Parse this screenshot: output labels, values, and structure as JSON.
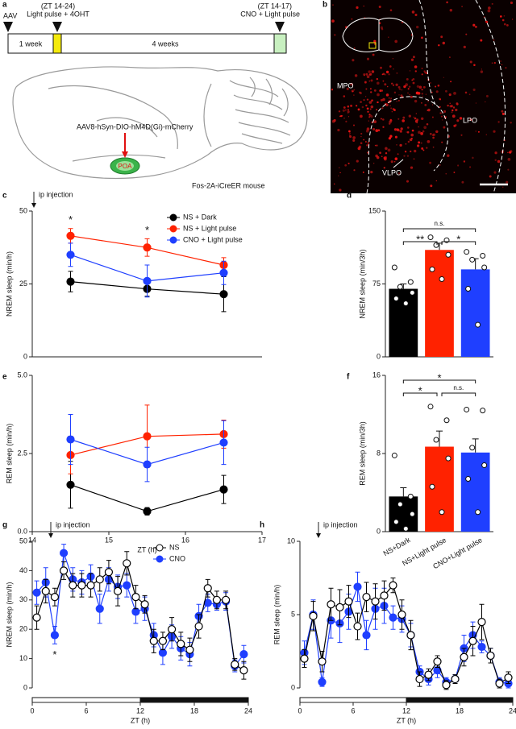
{
  "panel_a": {
    "label": "a",
    "aav": "AAV",
    "light_time": "(ZT 14-24)",
    "light_label": "Light pulse + 4OHT",
    "cno_time": "(ZT 14-17)",
    "cno_label": "CNO + Light pulse",
    "week1": "1 week",
    "week4": "4 weeks",
    "virus": "AAV8-hSyn-DIO-hM4D(Gi)-mCherry",
    "region": "POA",
    "mouse": "Fos-2A-iCreER mouse"
  },
  "panel_b": {
    "label": "b",
    "regions": [
      "MPO",
      "LPO",
      "VLPO"
    ]
  },
  "chart_data": [
    {
      "panel": "c",
      "type": "line",
      "ylabel": "NREM sleep (min/h)",
      "injection": "ip injection",
      "x": [
        14.5,
        15.5,
        16.5
      ],
      "xlim": [
        14,
        17
      ],
      "ylim": [
        0,
        50
      ],
      "yticks": [
        0,
        25,
        50
      ],
      "annotations": [
        "*",
        "*"
      ],
      "legend": "upper right",
      "series": [
        {
          "name": "NS + Dark",
          "color": "#000000",
          "marker": "filled",
          "values": [
            25.8,
            23.3,
            21.5
          ],
          "errors": [
            3.5,
            2.5,
            6
          ]
        },
        {
          "name": "NS + Light pulse",
          "color": "#ff2200",
          "marker": "filled",
          "values": [
            41.5,
            37.5,
            31.5
          ],
          "errors": [
            2.5,
            3,
            2.5
          ]
        },
        {
          "name": "CNO + Light pulse",
          "color": "#1f3fff",
          "marker": "filled",
          "values": [
            35,
            26,
            28.8
          ],
          "errors": [
            4,
            5.5,
            4
          ]
        }
      ]
    },
    {
      "panel": "d",
      "type": "bar",
      "ylabel": "NREM sleep (min/3h)",
      "categories": [
        null,
        null,
        null
      ],
      "values": [
        70,
        110,
        90
      ],
      "errors": [
        5,
        7,
        11
      ],
      "colors": [
        "#000000",
        "#ff2200",
        "#1f3fff"
      ],
      "points": [
        [
          92,
          77,
          72,
          66,
          60,
          55
        ],
        [
          123,
          120,
          115,
          105,
          90,
          80
        ],
        [
          108,
          104,
          100,
          92,
          70,
          33
        ]
      ],
      "ylim": [
        0,
        150
      ],
      "yticks": [
        0,
        75,
        150
      ],
      "annotations": [
        "n.s.",
        "**",
        "*"
      ]
    },
    {
      "panel": "e",
      "type": "line",
      "ylabel": "REM sleep (min/h)",
      "xlabel": "ZT (h)",
      "x": [
        14.5,
        15.5,
        16.5
      ],
      "xlim": [
        14,
        17
      ],
      "xticks": [
        14,
        15,
        16,
        17
      ],
      "ylim": [
        0,
        5
      ],
      "yticks": [
        {
          "value": 0,
          "label": "0.0"
        },
        2.5,
        {
          "value": 5,
          "label": "5.0"
        }
      ],
      "series": [
        {
          "color": "#000000",
          "marker": "filled",
          "values": [
            1.5,
            0.65,
            1.35
          ],
          "errors": [
            0.75,
            0.12,
            0.45
          ]
        },
        {
          "color": "#ff2200",
          "marker": "filled",
          "values": [
            2.45,
            3.05,
            3.12
          ],
          "errors": [
            0.6,
            1.0,
            0.45
          ]
        },
        {
          "color": "#1f3fff",
          "marker": "filled",
          "values": [
            2.95,
            2.15,
            2.85
          ],
          "errors": [
            0.8,
            0.55,
            0.7
          ]
        }
      ]
    },
    {
      "panel": "f",
      "type": "bar",
      "ylabel": "REM sleep (min/3h)",
      "categories": [
        "NS+Dark",
        "NS+Light pulse",
        "CNO+Light pulse"
      ],
      "values": [
        3.6,
        8.7,
        8.1
      ],
      "errors": [
        0.9,
        1.6,
        1.4
      ],
      "colors": [
        "#000000",
        "#ff2200",
        "#1f3fff"
      ],
      "points": [
        [
          7.8,
          3.6,
          2.8,
          1.8,
          1,
          0.3
        ],
        [
          12.8,
          11.4,
          9.4,
          7.5,
          4.6,
          2.0
        ],
        [
          12.5,
          12.4,
          8.6,
          6.8,
          5.4,
          2.0
        ]
      ],
      "ylim": [
        0,
        16
      ],
      "yticks": [
        0,
        8,
        16
      ],
      "annotations": [
        "*",
        "*",
        "n.s."
      ]
    },
    {
      "panel": "g",
      "type": "line",
      "ylabel": "NREM sleep (min/h)",
      "xlabel": "ZT (h)",
      "injection": "ip injection",
      "annotations": [
        "*"
      ],
      "legend": "upper right",
      "x": [
        0.5,
        1.5,
        2.5,
        3.5,
        4.5,
        5.5,
        6.5,
        7.5,
        8.5,
        9.5,
        10.5,
        11.5,
        12.5,
        13.5,
        14.5,
        15.5,
        16.5,
        17.5,
        18.5,
        19.5,
        20.5,
        21.5,
        22.5,
        23.5
      ],
      "xlim": [
        0,
        24
      ],
      "xticks": [
        0,
        6,
        12,
        18,
        24
      ],
      "ylim": [
        0,
        50
      ],
      "yticks": [
        0,
        10,
        20,
        30,
        40,
        50
      ],
      "dark_period": [
        12,
        24
      ],
      "series": [
        {
          "name": "CNO",
          "color": "#1f3fff",
          "marker": "filled",
          "values": [
            32.5,
            36,
            18,
            46,
            37,
            36,
            38,
            27,
            37,
            34.5,
            35,
            26,
            27,
            18,
            12,
            17.5,
            13.5,
            11.5,
            24.5,
            29,
            28.5,
            29.5,
            7.5,
            11.5
          ],
          "errors": [
            4,
            5,
            3,
            3,
            4,
            4,
            4,
            5,
            4,
            4,
            4,
            4,
            4,
            4,
            4,
            4,
            4,
            4,
            4,
            3,
            2,
            3,
            2,
            3
          ]
        },
        {
          "name": "NS",
          "color": "#000000",
          "marker": "open",
          "values": [
            24,
            33,
            31,
            40,
            35,
            35,
            35,
            37,
            39.5,
            33,
            42.5,
            31,
            28.5,
            16,
            16,
            20,
            15,
            13,
            21,
            34,
            30,
            30,
            8,
            6
          ],
          "errors": [
            4,
            4,
            3,
            3,
            4,
            4,
            4,
            4,
            4,
            5,
            4,
            4,
            3,
            4,
            3,
            4,
            4,
            4,
            4,
            3,
            3,
            3,
            2,
            3
          ]
        }
      ]
    },
    {
      "panel": "h",
      "type": "line",
      "ylabel": "REM sleep (min/h)",
      "xlabel": "ZT (h)",
      "injection": "ip injection",
      "x": [
        0.5,
        1.5,
        2.5,
        3.5,
        4.5,
        5.5,
        6.5,
        7.5,
        8.5,
        9.5,
        10.5,
        11.5,
        12.5,
        13.5,
        14.5,
        15.5,
        16.5,
        17.5,
        18.5,
        19.5,
        20.5,
        21.5,
        22.5,
        23.5
      ],
      "xlim": [
        0,
        24
      ],
      "xticks": [
        0,
        6,
        12,
        18,
        24
      ],
      "ylim": [
        0,
        10
      ],
      "yticks": [
        0,
        5,
        10
      ],
      "dark_period": [
        12,
        24
      ],
      "series": [
        {
          "color": "#1f3fff",
          "marker": "filled",
          "values": [
            2.4,
            5.0,
            0.4,
            4.6,
            4.4,
            5.2,
            6.9,
            3.6,
            5.4,
            5.6,
            4.8,
            4.7,
            3.6,
            1.1,
            0.6,
            1.2,
            0.4,
            0.6,
            2.7,
            3.6,
            2.8,
            2.2,
            0.4,
            0.3
          ],
          "errors": [
            0.8,
            1.0,
            0.3,
            1.2,
            1.3,
            1.2,
            1.0,
            1.0,
            1.4,
            1.2,
            0.8,
            0.9,
            0.8,
            0.4,
            0.4,
            0.5,
            0.3,
            0.3,
            0.9,
            0.9,
            0.4,
            0.5,
            0.3,
            0.3
          ]
        },
        {
          "color": "#000000",
          "marker": "open",
          "values": [
            2.0,
            4.9,
            1.8,
            5.7,
            5.5,
            5.9,
            4.2,
            6.2,
            5.9,
            6.3,
            7.0,
            5.0,
            3.6,
            0.6,
            0.9,
            1.8,
            0.2,
            0.6,
            2.1,
            3.2,
            4.5,
            2.2,
            0.3,
            0.7
          ],
          "errors": [
            0.6,
            1.0,
            0.7,
            1.1,
            1.2,
            1.1,
            0.9,
            1.0,
            1.2,
            1.0,
            0.5,
            1.0,
            1.0,
            0.5,
            0.4,
            0.4,
            0.3,
            0.3,
            0.6,
            1.0,
            1.2,
            0.5,
            0.3,
            0.4
          ]
        }
      ]
    }
  ]
}
